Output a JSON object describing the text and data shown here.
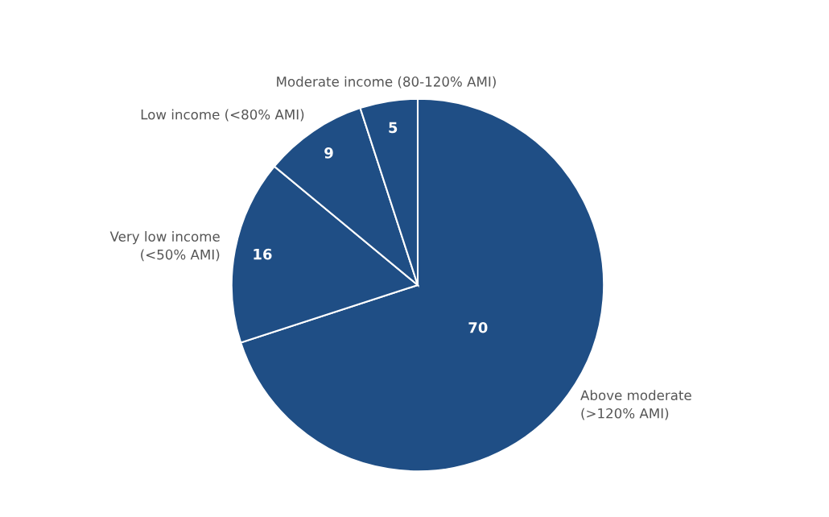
{
  "chart_data": {
    "type": "pie",
    "categories": [
      "Above moderate\n(>120% AMI)",
      "Very low income\n(<50% AMI)",
      "Low income (<80% AMI)",
      "Moderate income (80-120% AMI)"
    ],
    "values": [
      70,
      16,
      9,
      5
    ],
    "colors": [
      "#1f4e85",
      "#1f4e85",
      "#1f4e85",
      "#1f4e85"
    ],
    "data_labels": true
  }
}
